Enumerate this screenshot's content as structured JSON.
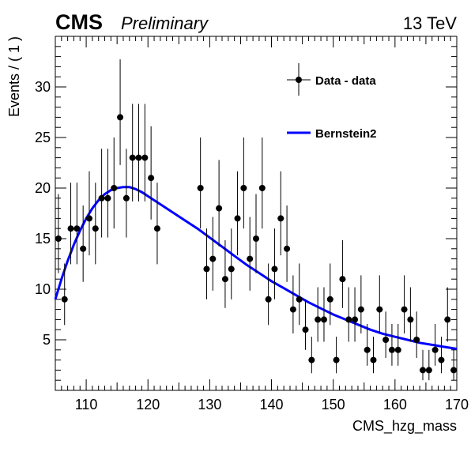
{
  "header": {
    "experiment": "CMS",
    "status": "Preliminary",
    "energy": "13 TeV"
  },
  "chart_data": {
    "type": "scatter",
    "xlabel": "CMS_hzg_mass",
    "ylabel": "Events / ( 1 )",
    "xlim": [
      105,
      170
    ],
    "ylim": [
      0,
      35
    ],
    "xticks": [
      110,
      120,
      130,
      140,
      150,
      160,
      170
    ],
    "yticks": [
      5,
      10,
      15,
      20,
      25,
      30
    ],
    "grid": false,
    "legend_position": "top-right",
    "colors": {
      "data": "#000000",
      "fit": "#0000ff"
    },
    "series": [
      {
        "name": "Data - data",
        "kind": "points-with-errors",
        "x": [
          105.5,
          106.5,
          107.5,
          108.5,
          109.5,
          110.5,
          111.5,
          112.5,
          113.5,
          114.5,
          115.5,
          116.5,
          117.5,
          118.5,
          119.5,
          120.5,
          121.5,
          128.5,
          129.5,
          130.5,
          131.5,
          132.5,
          133.5,
          134.5,
          135.5,
          136.5,
          137.5,
          138.5,
          139.5,
          140.5,
          141.5,
          142.5,
          143.5,
          144.5,
          145.5,
          146.5,
          147.5,
          148.5,
          149.5,
          150.5,
          151.5,
          152.5,
          153.5,
          154.5,
          155.5,
          156.5,
          157.5,
          158.5,
          159.5,
          160.5,
          161.5,
          162.5,
          163.5,
          164.5,
          165.5,
          166.5,
          167.5,
          168.5,
          169.5
        ],
        "y": [
          15,
          9,
          16,
          16,
          14,
          17,
          16,
          19,
          19,
          20,
          27,
          19,
          23,
          23,
          23,
          21,
          16,
          20,
          12,
          13,
          18,
          11,
          12,
          17,
          20,
          13,
          15,
          20,
          9,
          12,
          17,
          14,
          8,
          9,
          6,
          3,
          7,
          7,
          9,
          3,
          11,
          7,
          7,
          8,
          4,
          3,
          8,
          5,
          4,
          4,
          8,
          7,
          5,
          2,
          2,
          4,
          3,
          7,
          2
        ]
      },
      {
        "name": "Bernstein2",
        "kind": "line",
        "x": [
          105,
          106,
          107,
          108,
          109,
          110,
          111,
          112,
          113,
          114,
          115,
          116,
          117,
          118,
          119,
          120,
          121,
          122,
          124,
          126,
          128,
          130,
          132,
          134,
          136,
          138,
          140,
          142,
          144,
          146,
          148,
          150,
          152,
          154,
          156,
          158,
          160,
          162,
          164,
          166,
          168,
          170
        ],
        "y": [
          9.0,
          11.0,
          12.8,
          14.4,
          15.8,
          17.0,
          18.0,
          18.8,
          19.4,
          19.8,
          20.0,
          20.1,
          20.1,
          19.9,
          19.6,
          19.2,
          18.8,
          18.4,
          17.6,
          16.8,
          16.0,
          15.1,
          14.2,
          13.3,
          12.4,
          11.6,
          10.8,
          10.1,
          9.4,
          8.7,
          8.1,
          7.5,
          7.0,
          6.5,
          6.0,
          5.6,
          5.3,
          5.0,
          4.7,
          4.5,
          4.3,
          4.1
        ]
      }
    ]
  }
}
